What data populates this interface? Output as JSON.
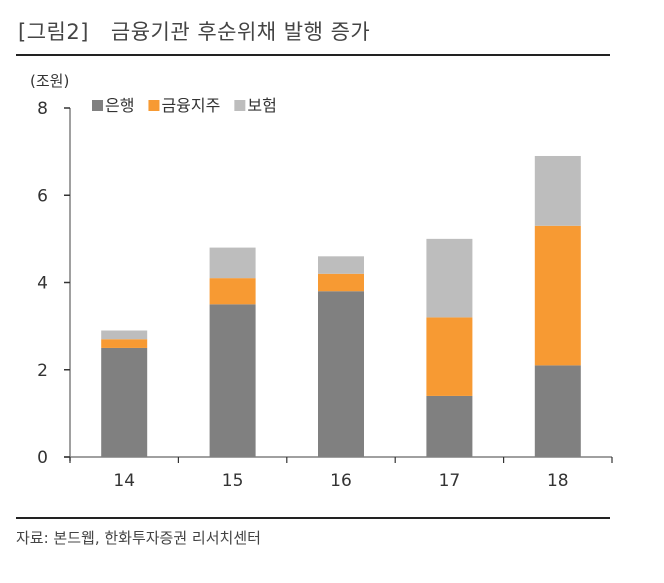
{
  "figure": {
    "number": "[그림2]",
    "title": "금융기관 후순위채 발행 증가",
    "source": "자료: 본드웹, 한화투자증권 리서치센터"
  },
  "chart_data": {
    "type": "bar",
    "stacked": true,
    "title": "금융기관 후순위채 발행 증가",
    "unit_label": "(조원)",
    "xlabel": "",
    "ylabel": "(조원)",
    "categories": [
      "14",
      "15",
      "16",
      "17",
      "18"
    ],
    "ylim": [
      0,
      8
    ],
    "yticks": [
      0,
      2,
      4,
      6,
      8
    ],
    "grid": false,
    "legend_position": "top-left",
    "series": [
      {
        "name": "은행",
        "color": "#808080",
        "values": [
          2.5,
          3.5,
          3.8,
          1.4,
          2.1
        ]
      },
      {
        "name": "금융지주",
        "color": "#F79A33",
        "values": [
          0.2,
          0.6,
          0.4,
          1.8,
          3.2
        ]
      },
      {
        "name": "보험",
        "color": "#BDBDBD",
        "values": [
          0.2,
          0.7,
          0.4,
          1.8,
          1.6
        ]
      }
    ]
  }
}
